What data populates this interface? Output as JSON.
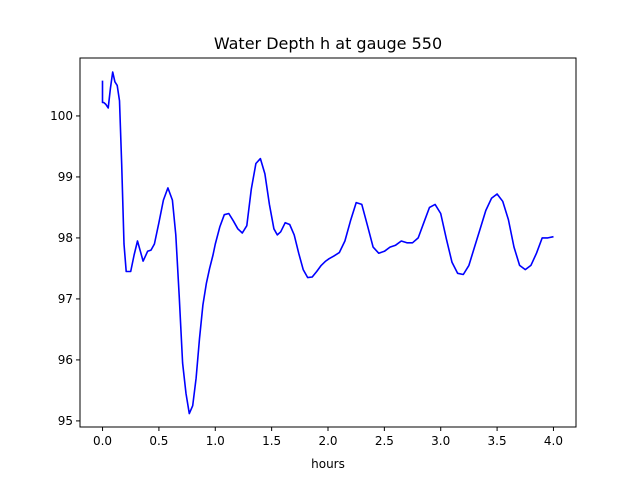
{
  "chart_data": {
    "type": "line",
    "title": "Water Depth h at gauge 550",
    "xlabel": "hours",
    "ylabel": "",
    "xlim": [
      -0.2,
      4.2
    ],
    "ylim": [
      94.9,
      100.95
    ],
    "xticks": [
      0.0,
      0.5,
      1.0,
      1.5,
      2.0,
      2.5,
      3.0,
      3.5,
      4.0
    ],
    "xtick_labels": [
      "0.0",
      "0.5",
      "1.0",
      "1.5",
      "2.0",
      "2.5",
      "3.0",
      "3.5",
      "4.0"
    ],
    "yticks": [
      95,
      96,
      97,
      98,
      99,
      100
    ],
    "ytick_labels": [
      "95",
      "96",
      "97",
      "98",
      "99",
      "100"
    ],
    "grid": false,
    "series": [
      {
        "color": "#0000ff",
        "x": [
          0.0,
          0.0,
          0.01,
          0.03,
          0.05,
          0.07,
          0.09,
          0.11,
          0.13,
          0.15,
          0.17,
          0.19,
          0.21,
          0.23,
          0.25,
          0.28,
          0.31,
          0.34,
          0.36,
          0.38,
          0.4,
          0.43,
          0.46,
          0.5,
          0.54,
          0.58,
          0.62,
          0.65,
          0.68,
          0.71,
          0.74,
          0.77,
          0.8,
          0.83,
          0.86,
          0.89,
          0.92,
          0.95,
          0.98,
          1.0,
          1.04,
          1.08,
          1.12,
          1.16,
          1.2,
          1.24,
          1.28,
          1.32,
          1.36,
          1.4,
          1.44,
          1.48,
          1.52,
          1.55,
          1.58,
          1.62,
          1.66,
          1.7,
          1.74,
          1.78,
          1.82,
          1.86,
          1.9,
          1.94,
          1.98,
          2.01,
          2.05,
          2.1,
          2.15,
          2.2,
          2.25,
          2.3,
          2.35,
          2.4,
          2.45,
          2.5,
          2.55,
          2.6,
          2.65,
          2.7,
          2.75,
          2.8,
          2.85,
          2.9,
          2.95,
          3.0,
          3.05,
          3.1,
          3.15,
          3.2,
          3.25,
          3.3,
          3.35,
          3.4,
          3.45,
          3.5,
          3.55,
          3.6,
          3.65,
          3.7,
          3.75,
          3.8,
          3.85,
          3.9,
          3.95,
          4.0
        ],
        "y": [
          100.58,
          100.22,
          100.22,
          100.19,
          100.13,
          100.45,
          100.72,
          100.56,
          100.5,
          100.25,
          99.2,
          97.9,
          97.45,
          97.45,
          97.45,
          97.72,
          97.95,
          97.75,
          97.62,
          97.7,
          97.78,
          97.8,
          97.9,
          98.25,
          98.62,
          98.82,
          98.62,
          98.05,
          97.05,
          95.95,
          95.45,
          95.12,
          95.25,
          95.7,
          96.35,
          96.9,
          97.25,
          97.5,
          97.72,
          97.9,
          98.18,
          98.38,
          98.4,
          98.28,
          98.15,
          98.08,
          98.2,
          98.8,
          99.22,
          99.3,
          99.05,
          98.55,
          98.15,
          98.05,
          98.1,
          98.25,
          98.22,
          98.05,
          97.75,
          97.48,
          97.35,
          97.36,
          97.45,
          97.55,
          97.62,
          97.66,
          97.7,
          97.76,
          97.95,
          98.28,
          98.58,
          98.55,
          98.2,
          97.85,
          97.75,
          97.78,
          97.85,
          97.88,
          97.95,
          97.92,
          97.92,
          98.0,
          98.25,
          98.5,
          98.55,
          98.4,
          97.98,
          97.6,
          97.42,
          97.4,
          97.55,
          97.85,
          98.15,
          98.45,
          98.65,
          98.72,
          98.6,
          98.3,
          97.85,
          97.55,
          97.48,
          97.55,
          97.75,
          98.0,
          98.0,
          98.02
        ]
      }
    ]
  }
}
